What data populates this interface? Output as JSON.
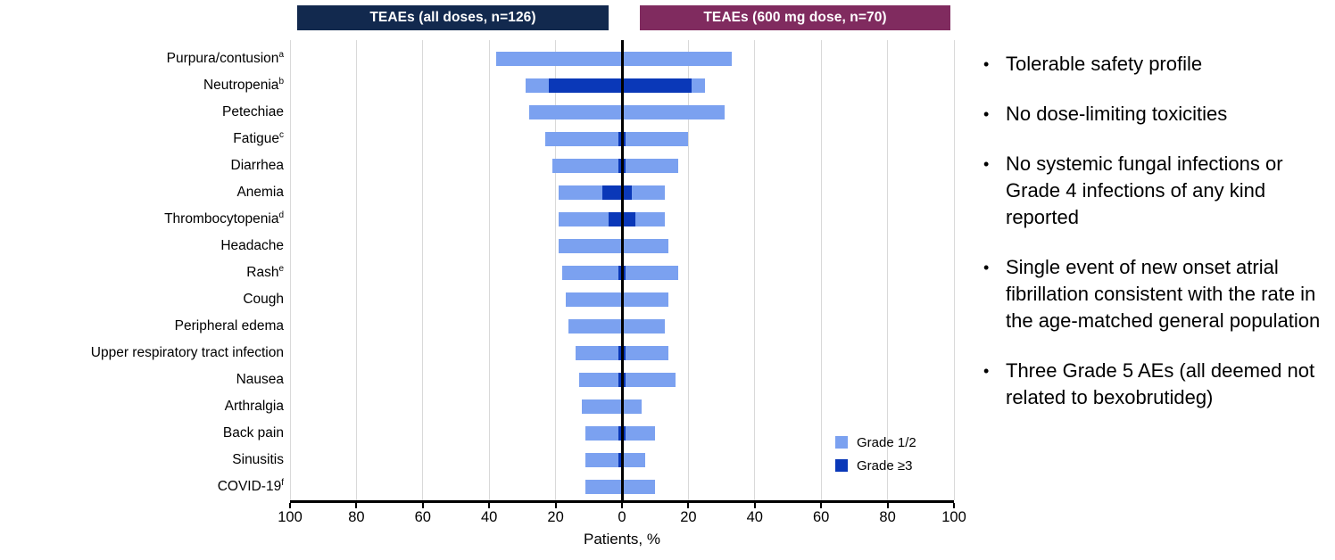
{
  "headers": {
    "left": "TEAEs (all doses, n=126)",
    "right": "TEAEs (600 mg dose, n=70)"
  },
  "colors": {
    "header_left_bg": "#12294E",
    "header_right_bg": "#802B5F",
    "grade12": "#7BA1F0",
    "grade3": "#0A38B8",
    "gridline": "#D9D9D9",
    "axis": "#000000"
  },
  "legend": {
    "grade12": "Grade 1/2",
    "grade3": "Grade ≥3"
  },
  "chart_data": {
    "type": "bar",
    "orientation": "horizontal-bidirectional-tornado",
    "title_left": "TEAEs (all doses, n=126)",
    "title_right": "TEAEs (600 mg dose, n=70)",
    "xlabel": "Patients, %",
    "axis_ticks": [
      100,
      80,
      60,
      40,
      20,
      0,
      20,
      40,
      60,
      80,
      100
    ],
    "axis_range_per_side": [
      0,
      100
    ],
    "grid": true,
    "legend_items": [
      {
        "label": "Grade 1/2",
        "color_key": "grade12"
      },
      {
        "label": "Grade ≥3",
        "color_key": "grade3"
      }
    ],
    "legend_position": "inside-right-bottom",
    "unit": "% of patients",
    "rows": [
      {
        "label": "Purpura/contusion",
        "sup": "a",
        "left_total": 38,
        "left_grade3plus": 0,
        "right_total": 33,
        "right_grade3plus": 0
      },
      {
        "label": "Neutropenia",
        "sup": "b",
        "left_total": 29,
        "left_grade3plus": 22,
        "right_total": 25,
        "right_grade3plus": 21
      },
      {
        "label": "Petechiae",
        "sup": "",
        "left_total": 28,
        "left_grade3plus": 0,
        "right_total": 31,
        "right_grade3plus": 0
      },
      {
        "label": "Fatigue",
        "sup": "c",
        "left_total": 23,
        "left_grade3plus": 1,
        "right_total": 20,
        "right_grade3plus": 1
      },
      {
        "label": "Diarrhea",
        "sup": "",
        "left_total": 21,
        "left_grade3plus": 1,
        "right_total": 17,
        "right_grade3plus": 1
      },
      {
        "label": "Anemia",
        "sup": "",
        "left_total": 19,
        "left_grade3plus": 6,
        "right_total": 13,
        "right_grade3plus": 3
      },
      {
        "label": "Thrombocytopenia",
        "sup": "d",
        "left_total": 19,
        "left_grade3plus": 4,
        "right_total": 13,
        "right_grade3plus": 4
      },
      {
        "label": "Headache",
        "sup": "",
        "left_total": 19,
        "left_grade3plus": 0,
        "right_total": 14,
        "right_grade3plus": 0
      },
      {
        "label": "Rash",
        "sup": "e",
        "left_total": 18,
        "left_grade3plus": 1,
        "right_total": 17,
        "right_grade3plus": 1
      },
      {
        "label": "Cough",
        "sup": "",
        "left_total": 17,
        "left_grade3plus": 0,
        "right_total": 14,
        "right_grade3plus": 0
      },
      {
        "label": "Peripheral edema",
        "sup": "",
        "left_total": 16,
        "left_grade3plus": 0,
        "right_total": 13,
        "right_grade3plus": 0
      },
      {
        "label": "Upper respiratory tract infection",
        "sup": "",
        "left_total": 14,
        "left_grade3plus": 1,
        "right_total": 14,
        "right_grade3plus": 1
      },
      {
        "label": "Nausea",
        "sup": "",
        "left_total": 13,
        "left_grade3plus": 1,
        "right_total": 16,
        "right_grade3plus": 1
      },
      {
        "label": "Arthralgia",
        "sup": "",
        "left_total": 12,
        "left_grade3plus": 0,
        "right_total": 6,
        "right_grade3plus": 0
      },
      {
        "label": "Back pain",
        "sup": "",
        "left_total": 11,
        "left_grade3plus": 1,
        "right_total": 10,
        "right_grade3plus": 1
      },
      {
        "label": "Sinusitis",
        "sup": "",
        "left_total": 11,
        "left_grade3plus": 1,
        "right_total": 7,
        "right_grade3plus": 0
      },
      {
        "label": "COVID-19",
        "sup": "f",
        "left_total": 11,
        "left_grade3plus": 0,
        "right_total": 10,
        "right_grade3plus": 0
      }
    ]
  },
  "notes": {
    "bullets": [
      "Tolerable safety profile",
      "No dose-limiting toxicities",
      "No systemic fungal infections or Grade 4 infections of any kind reported",
      "Single event of new onset atrial fibrillation consistent with the rate  in the age-matched general population",
      "Three Grade 5 AEs (all deemed not related to bexobrutideg)"
    ]
  }
}
